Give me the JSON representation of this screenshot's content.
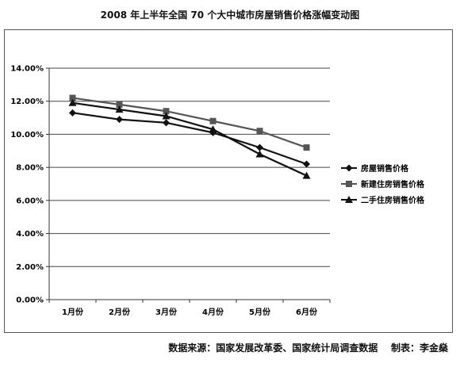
{
  "title": "2008 年上半年全国 70 个大中城市房屋销售价格涨幅变动图",
  "source": "数据来源：国家发展改革委、国家统计局调查数据    制表：李金燊",
  "chart_data": {
    "type": "line",
    "title": "2008 年上半年全国 70 个大中城市房屋销售价格涨幅变动图",
    "categories": [
      "1月份",
      "2月份",
      "3月份",
      "4月份",
      "5月份",
      "6月份"
    ],
    "y_ticks": [
      "0.00%",
      "2.00%",
      "4.00%",
      "6.00%",
      "8.00%",
      "10.00%",
      "12.00%",
      "14.00%"
    ],
    "ylim": [
      0,
      14
    ],
    "grid": true,
    "legend_position": "right",
    "series": [
      {
        "name": "房屋销售价格",
        "marker": "diamond",
        "color": "#111111",
        "values": [
          11.3,
          10.9,
          10.7,
          10.1,
          9.2,
          8.2
        ]
      },
      {
        "name": "新建住房销售价格",
        "marker": "square",
        "color": "#555555",
        "values": [
          12.2,
          11.8,
          11.4,
          10.8,
          10.2,
          9.2
        ]
      },
      {
        "name": "二手住房销售价格",
        "marker": "triangle",
        "color": "#111111",
        "values": [
          11.9,
          11.5,
          11.1,
          10.3,
          8.8,
          7.5
        ]
      }
    ]
  }
}
